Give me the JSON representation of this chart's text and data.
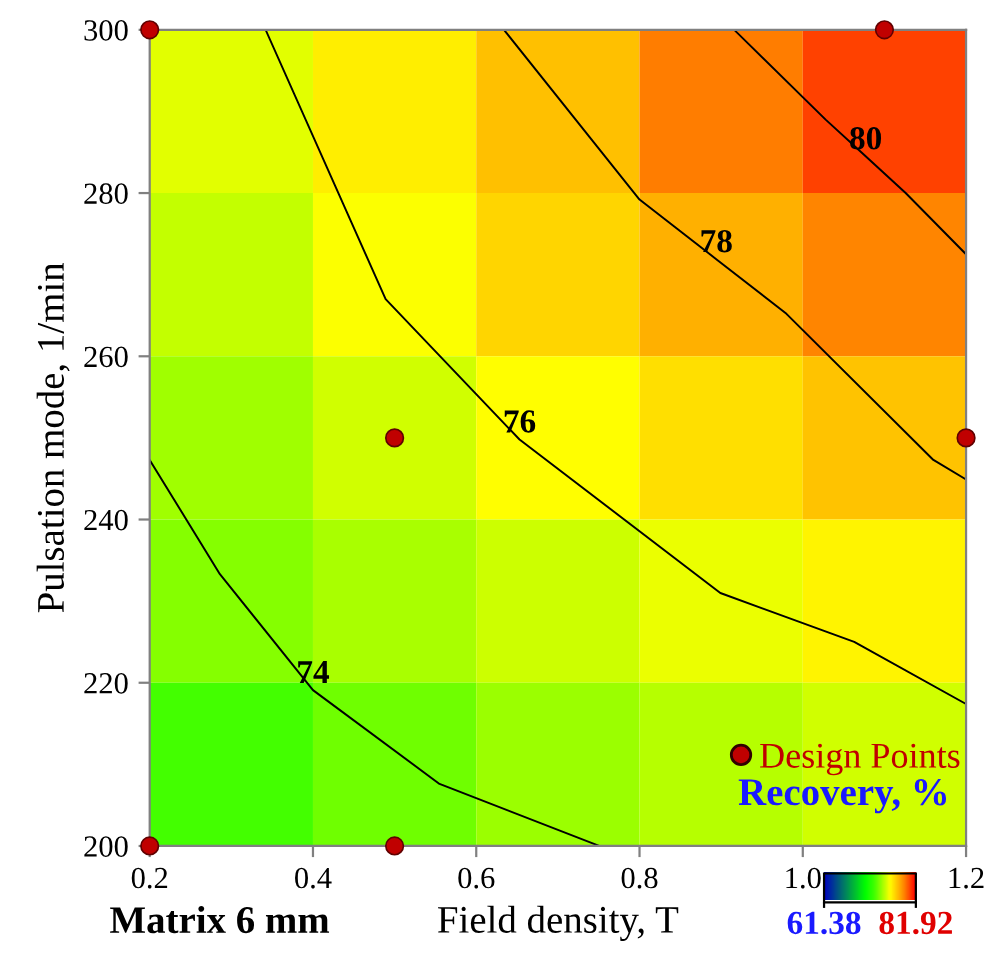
{
  "chart_data": {
    "type": "heatmap",
    "xlabel": "Field density, T",
    "ylabel": "Pulsation mode, 1/min",
    "clabel": "Recovery, %",
    "xlim": [
      0.2,
      1.2
    ],
    "ylim": [
      200,
      300
    ],
    "xticks": [
      0.2,
      0.4,
      0.6,
      0.8,
      {
        "value": 1,
        "label": "1.0"
      },
      1.2
    ],
    "yticks": [
      200,
      220,
      240,
      260,
      280,
      300
    ],
    "clim": [
      61.38,
      81.92
    ],
    "cticks": [
      61.38,
      81.92
    ],
    "cells": [
      [
        75.6,
        76.6,
        77.8,
        79.4,
        80.6
      ],
      [
        75.1,
        76.1,
        77.2,
        78.2,
        79.2
      ],
      [
        74.4,
        75.3,
        76.2,
        77.0,
        77.7
      ],
      [
        73.9,
        74.6,
        75.2,
        75.8,
        76.4
      ],
      [
        72.7,
        73.5,
        74.3,
        74.8,
        75.3
      ]
    ],
    "series": [
      {
        "type": "line",
        "color": "#000000",
        "x": [
          0.2,
          0.286,
          0.4,
          0.555,
          0.751
        ],
        "values": [
          247.3,
          233.3,
          219.1,
          207.6,
          200
        ]
      },
      {
        "type": "line",
        "color": "#000000",
        "x": [
          0.342,
          0.489,
          0.653,
          0.899,
          1.063,
          1.2
        ],
        "values": [
          300,
          267,
          249.8,
          231,
          225,
          217.4
        ]
      },
      {
        "type": "line",
        "color": "#000000",
        "x": [
          0.634,
          0.8,
          0.894,
          0.98,
          1.16,
          1.2
        ],
        "values": [
          300,
          279.2,
          271.9,
          265.2,
          247.3,
          244.9
        ]
      },
      {
        "type": "line",
        "color": "#000000",
        "x": [
          0.916,
          1.028,
          1.077,
          1.126,
          1.2
        ],
        "values": [
          300,
          289,
          284.5,
          280,
          272.5
        ]
      },
      {
        "type": "scatter",
        "name": "Design Points",
        "color": "#c00000",
        "marker": "circle",
        "x": [
          0.2,
          1.1,
          0.5,
          1.2,
          0.2,
          0.5
        ],
        "values": [
          300,
          300,
          250,
          250,
          200,
          200
        ]
      }
    ],
    "annotations": [
      {
        "text": "74",
        "x": 0.4,
        "y": 219.1
      },
      {
        "text": "76",
        "x": 0.653,
        "y": 249.8
      },
      {
        "text": "78",
        "x": 0.894,
        "y": 271.9
      },
      {
        "text": "80",
        "x": 1.077,
        "y": 284.5
      },
      "Matrix 6 mm"
    ],
    "grid": false,
    "legend": "bottom right"
  }
}
